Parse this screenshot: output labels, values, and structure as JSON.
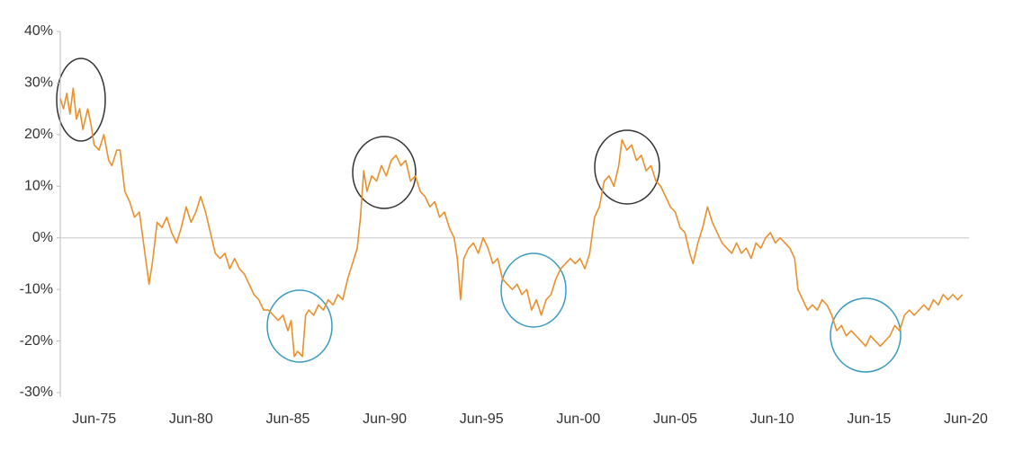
{
  "chart_data": {
    "type": "line",
    "x": [
      "1973-09",
      "1973-11",
      "1974-01",
      "1974-03",
      "1974-05",
      "1974-07",
      "1974-09",
      "1974-11",
      "1975-02",
      "1975-04",
      "1975-06",
      "1975-09",
      "1975-12",
      "1976-03",
      "1976-05",
      "1976-08",
      "1976-10",
      "1977-01",
      "1977-04",
      "1977-07",
      "1977-10",
      "1978-01",
      "1978-04",
      "1978-06",
      "1978-09",
      "1978-12",
      "1979-03",
      "1979-06",
      "1979-09",
      "1979-12",
      "1980-03",
      "1980-06",
      "1980-09",
      "1980-12",
      "1981-03",
      "1981-06",
      "1981-09",
      "1981-12",
      "1982-03",
      "1982-06",
      "1982-09",
      "1982-12",
      "1983-03",
      "1983-06",
      "1983-09",
      "1983-12",
      "1984-03",
      "1984-06",
      "1984-09",
      "1984-12",
      "1985-03",
      "1985-06",
      "1985-08",
      "1985-10",
      "1985-12",
      "1986-03",
      "1986-05",
      "1986-07",
      "1986-10",
      "1987-01",
      "1987-04",
      "1987-07",
      "1987-10",
      "1988-01",
      "1988-04",
      "1988-07",
      "1988-10",
      "1989-01",
      "1989-03",
      "1989-05",
      "1989-07",
      "1989-10",
      "1990-01",
      "1990-04",
      "1990-07",
      "1990-10",
      "1991-01",
      "1991-04",
      "1991-07",
      "1991-10",
      "1992-01",
      "1992-04",
      "1992-07",
      "1992-10",
      "1993-01",
      "1993-04",
      "1993-07",
      "1993-10",
      "1994-01",
      "1994-03",
      "1994-05",
      "1994-07",
      "1994-10",
      "1995-01",
      "1995-04",
      "1995-07",
      "1995-10",
      "1996-01",
      "1996-04",
      "1996-07",
      "1996-10",
      "1997-01",
      "1997-04",
      "1997-07",
      "1997-10",
      "1998-01",
      "1998-04",
      "1998-07",
      "1998-10",
      "1999-01",
      "1999-04",
      "1999-07",
      "1999-10",
      "2000-01",
      "2000-04",
      "2000-07",
      "2000-10",
      "2001-01",
      "2001-04",
      "2001-07",
      "2001-10",
      "2002-01",
      "2002-04",
      "2002-07",
      "2002-09",
      "2002-12",
      "2003-03",
      "2003-06",
      "2003-09",
      "2003-12",
      "2004-03",
      "2004-06",
      "2004-09",
      "2004-12",
      "2005-03",
      "2005-06",
      "2005-09",
      "2005-12",
      "2006-03",
      "2006-05",
      "2006-08",
      "2006-11",
      "2007-02",
      "2007-05",
      "2007-08",
      "2007-11",
      "2008-02",
      "2008-05",
      "2008-08",
      "2008-11",
      "2009-02",
      "2009-05",
      "2009-08",
      "2009-11",
      "2010-02",
      "2010-05",
      "2010-08",
      "2010-11",
      "2011-02",
      "2011-05",
      "2011-08",
      "2011-10",
      "2012-01",
      "2012-04",
      "2012-07",
      "2012-10",
      "2013-01",
      "2013-04",
      "2013-07",
      "2013-10",
      "2014-01",
      "2014-04",
      "2014-07",
      "2014-10",
      "2015-01",
      "2015-04",
      "2015-07",
      "2015-10",
      "2016-01",
      "2016-04",
      "2016-07",
      "2016-10",
      "2017-01",
      "2017-04",
      "2017-07",
      "2017-10",
      "2018-01",
      "2018-04",
      "2018-07",
      "2018-10",
      "2019-01",
      "2019-04",
      "2019-07",
      "2019-10",
      "2020-01",
      "2020-04"
    ],
    "series": [
      {
        "color": "#e8902c",
        "values": [
          27,
          25,
          28,
          24,
          29,
          23,
          25,
          21,
          25,
          22,
          18,
          17,
          20,
          15,
          14,
          17,
          17,
          9,
          7,
          4,
          5,
          -2,
          -9,
          -5,
          3,
          2,
          4,
          1,
          -1,
          2,
          6,
          3,
          5,
          8,
          5,
          1,
          -3,
          -4,
          -3,
          -6,
          -4,
          -6,
          -7,
          -9,
          -11,
          -12,
          -14,
          -14,
          -15,
          -16,
          -15,
          -18,
          -16,
          -23,
          -22,
          -23,
          -15,
          -14,
          -15,
          -13,
          -14,
          -12,
          -13,
          -11,
          -12,
          -8,
          -5,
          -2,
          4,
          13,
          9,
          12,
          11,
          14,
          12,
          15,
          16,
          14,
          15,
          11,
          12,
          9,
          8,
          6,
          7,
          4,
          5,
          2,
          0,
          -4,
          -12,
          -4,
          -2,
          -1,
          -3,
          0,
          -2,
          -5,
          -4,
          -8,
          -9,
          -10,
          -9,
          -11,
          -10,
          -14,
          -12,
          -15,
          -12,
          -11,
          -8,
          -6,
          -5,
          -4,
          -5,
          -4,
          -6,
          -3,
          4,
          6,
          11,
          12,
          10,
          14,
          19,
          17,
          18,
          15,
          16,
          13,
          14,
          11,
          10,
          8,
          6,
          5,
          2,
          1,
          -3,
          -5,
          -1,
          2,
          6,
          3,
          1,
          -1,
          -2,
          -3,
          -1,
          -3,
          -2,
          -4,
          -1,
          -2,
          0,
          1,
          -1,
          0,
          -1,
          -2,
          -4,
          -10,
          -12,
          -14,
          -13,
          -14,
          -12,
          -13,
          -15,
          -18,
          -17,
          -19,
          -18,
          -19,
          -20,
          -21,
          -19,
          -20,
          -21,
          -20,
          -19,
          -17,
          -18,
          -15,
          -14,
          -15,
          -14,
          -13,
          -14,
          -12,
          -13,
          -11,
          -12,
          -11,
          -12,
          -11
        ]
      }
    ],
    "xlim": [
      "1973-09",
      "2020-08"
    ],
    "xticks": [
      {
        "value": "1975-06",
        "label": "Jun-75"
      },
      {
        "value": "1980-06",
        "label": "Jun-80"
      },
      {
        "value": "1985-06",
        "label": "Jun-85"
      },
      {
        "value": "1990-06",
        "label": "Jun-90"
      },
      {
        "value": "1995-06",
        "label": "Jun-95"
      },
      {
        "value": "2000-06",
        "label": "Jun-00"
      },
      {
        "value": "2005-06",
        "label": "Jun-05"
      },
      {
        "value": "2010-06",
        "label": "Jun-10"
      },
      {
        "value": "2015-06",
        "label": "Jun-15"
      },
      {
        "value": "2020-06",
        "label": "Jun-20"
      }
    ],
    "ylim": [
      -30,
      40
    ],
    "yticks": [
      {
        "value": -30,
        "label": "-30%"
      },
      {
        "value": -20,
        "label": "-20%"
      },
      {
        "value": -10,
        "label": "-10%"
      },
      {
        "value": 0,
        "label": "0%"
      },
      {
        "value": 10,
        "label": "10%"
      },
      {
        "value": 20,
        "label": "20%"
      },
      {
        "value": 30,
        "label": "30%"
      },
      {
        "value": 40,
        "label": "40%"
      }
    ],
    "zero_line": true
  }
}
